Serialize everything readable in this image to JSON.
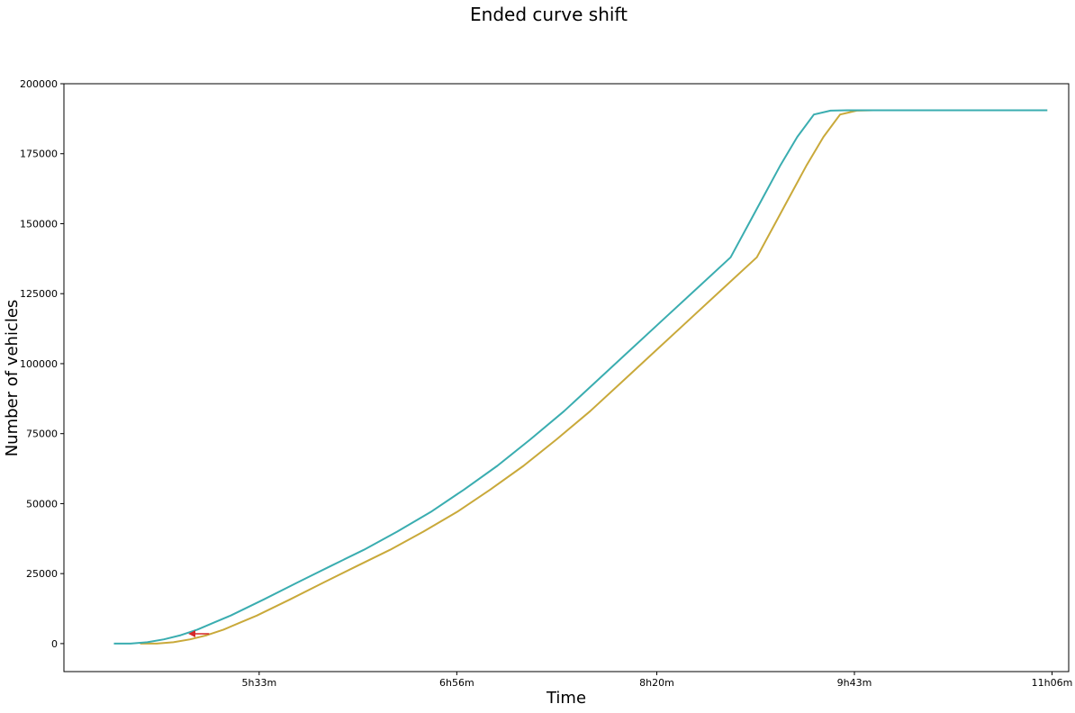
{
  "chart_data": {
    "type": "line",
    "title": "Ended curve shift",
    "xlabel": "Time",
    "ylabel": "Number of vehicles",
    "x_unit": "minutes",
    "xlim": [
      "4h11m",
      "11h13m"
    ],
    "ylim": [
      -10000,
      200000
    ],
    "x_ticks": [
      "5h33m",
      "6h56m",
      "8h20m",
      "9h43m",
      "11h06m"
    ],
    "y_ticks": [
      0,
      25000,
      50000,
      75000,
      100000,
      125000,
      150000,
      175000,
      200000
    ],
    "grid": false,
    "legend": "none",
    "series": [
      {
        "color": "#c9a93a",
        "x": [
          "4h43m",
          "4h50m",
          "4h57m",
          "5h04m",
          "5h11m",
          "5h18m",
          "5h25m",
          "5h32m",
          "5h46m",
          "6h00m",
          "6h14m",
          "6h28m",
          "6h42m",
          "6h56m",
          "7h10m",
          "7h24m",
          "7h38m",
          "7h52m",
          "8h06m",
          "8h20m",
          "8h34m",
          "8h48m",
          "9h02m",
          "9h09m",
          "9h16m",
          "9h23m",
          "9h30m",
          "9h37m",
          "9h44m",
          "9h51m",
          "10h05m",
          "10h33m",
          "11h04m"
        ],
        "y": [
          0,
          0,
          500,
          1500,
          3000,
          5000,
          7500,
          10000,
          15800,
          21800,
          27700,
          33500,
          40000,
          47000,
          55000,
          63500,
          73000,
          83000,
          94000,
          105000,
          116000,
          127000,
          138000,
          149000,
          160000,
          171000,
          181000,
          189000,
          190400,
          190500,
          190500,
          190500,
          190500
        ]
      },
      {
        "color": "#3aadb0",
        "x": [
          "4h32m",
          "4h39m",
          "4h46m",
          "4h53m",
          "5h00m",
          "5h07m",
          "5h14m",
          "5h21m",
          "5h35m",
          "5h49m",
          "6h03m",
          "6h17m",
          "6h31m",
          "6h45m",
          "6h59m",
          "7h13m",
          "7h27m",
          "7h41m",
          "7h55m",
          "8h09m",
          "8h23m",
          "8h37m",
          "8h51m",
          "8h58m",
          "9h05m",
          "9h12m",
          "9h19m",
          "9h26m",
          "9h33m",
          "9h40m",
          "9h54m",
          "10h22m",
          "11h04m"
        ],
        "y": [
          0,
          0,
          500,
          1500,
          3000,
          5000,
          7500,
          10000,
          15800,
          21800,
          27700,
          33500,
          40000,
          47000,
          55000,
          63500,
          73000,
          83000,
          94000,
          105000,
          116000,
          127000,
          138000,
          149000,
          160000,
          171000,
          181000,
          189000,
          190400,
          190500,
          190500,
          190500,
          190500
        ]
      }
    ],
    "annotations": [
      {
        "type": "arrow",
        "color": "#d62728",
        "from": [
          "5h12m",
          3500
        ],
        "to": [
          "5h04m",
          3500
        ]
      }
    ]
  }
}
